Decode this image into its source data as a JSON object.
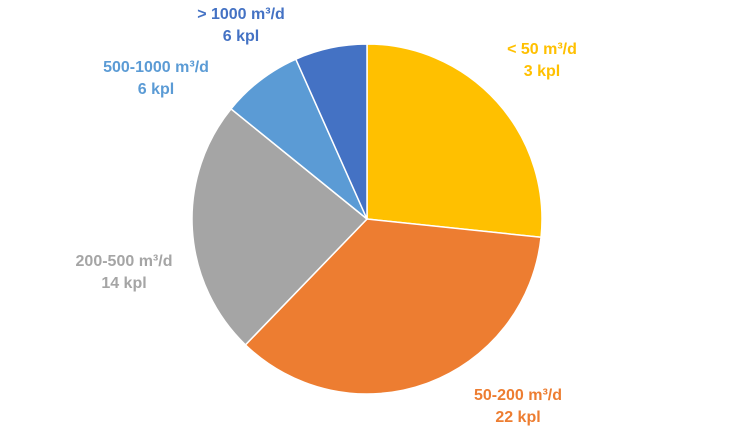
{
  "chart_data": {
    "type": "pie",
    "title": "",
    "slices": [
      {
        "category": "< 50 m³/d",
        "label": "3 kpl",
        "value": 3,
        "color": "#FFC000",
        "label_color": "#FFC000"
      },
      {
        "category": "50-200 m³/d",
        "label": "22 kpl",
        "value": 22,
        "color": "#ED7D31",
        "label_color": "#ED7D31"
      },
      {
        "category": "200-500 m³/d",
        "label": "14 kpl",
        "value": 14,
        "color": "#A5A5A5",
        "label_color": "#A5A5A5"
      },
      {
        "category": "500-1000 m³/d",
        "label": "6 kpl",
        "value": 6,
        "color": "#5B9BD5",
        "label_color": "#5B9BD5"
      },
      {
        "category": "> 1000 m³/d",
        "label": "6 kpl",
        "value": 6,
        "color": "#4472C4",
        "label_color": "#4472C4"
      }
    ],
    "legend": "none"
  }
}
